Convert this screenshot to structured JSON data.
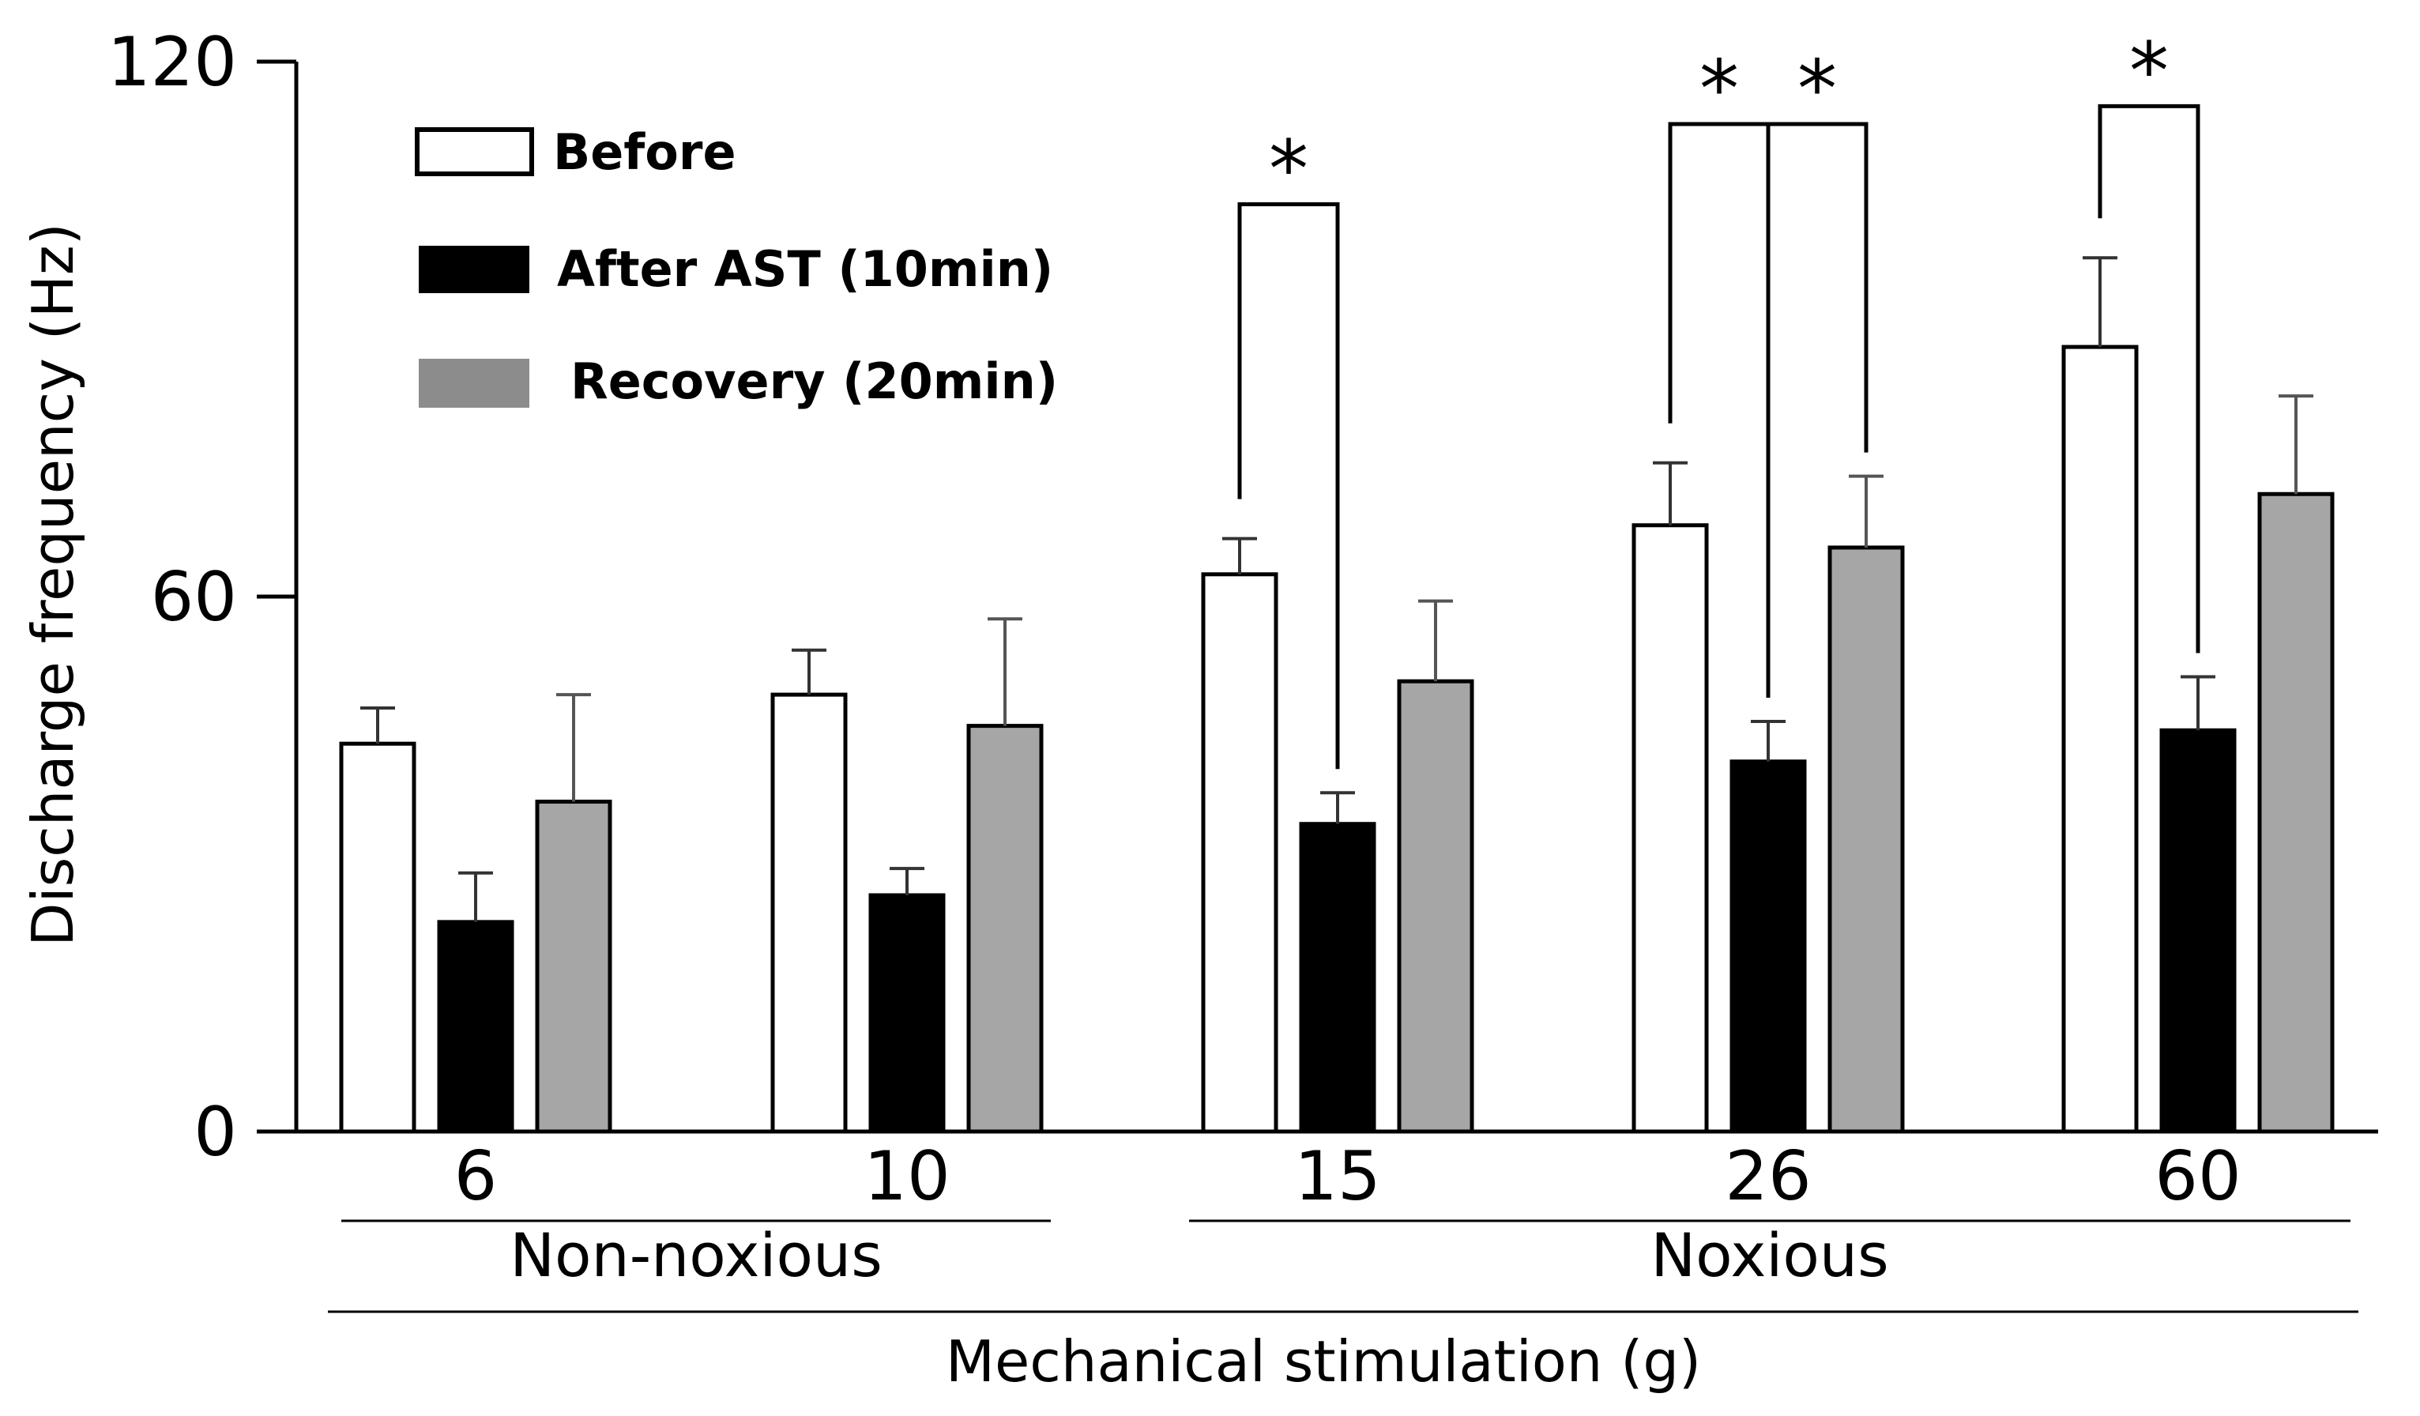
{
  "chart_data": {
    "type": "bar",
    "title": "",
    "xlabel": "Mechanical stimulation (g)",
    "ylabel": "Discharge frequency (Hz)",
    "ylim": [
      0,
      120
    ],
    "yticks": [
      0,
      60,
      120
    ],
    "categories": [
      "6",
      "10",
      "15",
      "26",
      "60"
    ],
    "series": [
      {
        "name": "Before",
        "color": "#ffffff",
        "values": [
          43.5,
          49,
          62.5,
          68,
          88
        ],
        "errors": [
          4,
          5,
          4,
          7,
          10
        ]
      },
      {
        "name": "After AST (10min)",
        "color": "#000000",
        "values": [
          23.5,
          26.5,
          34.5,
          41.5,
          45
        ],
        "errors": [
          5.5,
          3,
          3.5,
          4.5,
          6
        ]
      },
      {
        "name": "Recovery (20min)",
        "color": "#a6a6a6",
        "values": [
          37,
          45.5,
          50.5,
          65.5,
          71.5
        ],
        "errors": [
          12,
          12,
          9,
          8,
          11
        ]
      }
    ],
    "groups": [
      {
        "label": "Non-noxious",
        "categories": [
          "6",
          "10"
        ]
      },
      {
        "label": "Noxious",
        "categories": [
          "15",
          "26",
          "60"
        ]
      }
    ],
    "significance": [
      {
        "category": "15",
        "from": "Before",
        "to": "After AST (10min)",
        "label": "*"
      },
      {
        "category": "26",
        "from": "Before",
        "to": "After AST (10min)",
        "label": "*"
      },
      {
        "category": "26",
        "from": "After AST (10min)",
        "to": "Recovery (20min)",
        "label": "*"
      },
      {
        "category": "60",
        "from": "Before",
        "to": "After AST (10min)",
        "label": "*"
      }
    ]
  }
}
